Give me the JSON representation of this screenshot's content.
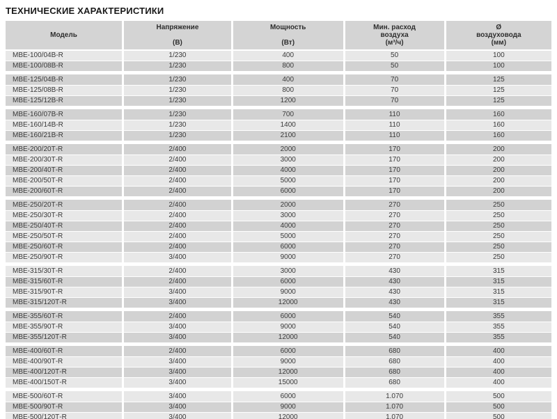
{
  "title": "ТЕХНИЧЕСКИЕ ХАРАКТЕРИСТИКИ",
  "theme": {
    "header_bg": "#d4d4d4",
    "row_dark": "#d2d2d2",
    "row_light": "#e8e8e8",
    "text": "#3a3a3a",
    "title_color": "#1a1a1a"
  },
  "table": {
    "columns": [
      {
        "id": "model",
        "lines": [
          "Модель"
        ]
      },
      {
        "id": "voltage",
        "lines": [
          "Напряжение",
          "(В)"
        ]
      },
      {
        "id": "power",
        "lines": [
          "Мощность",
          "(Вт)"
        ]
      },
      {
        "id": "airflow",
        "lines": [
          "Мин. расход",
          "воздуха",
          "(м³/ч)"
        ]
      },
      {
        "id": "diameter",
        "lines": [
          "Ø",
          "воздуховода",
          "(мм)"
        ]
      }
    ],
    "groups": [
      {
        "rows": [
          [
            "МВЕ-100/04В-R",
            "1/230",
            "400",
            "50",
            "100"
          ],
          [
            "МВЕ-100/08В-R",
            "1/230",
            "800",
            "50",
            "100"
          ]
        ]
      },
      {
        "rows": [
          [
            "МВЕ-125/04В-R",
            "1/230",
            "400",
            "70",
            "125"
          ],
          [
            "МВЕ-125/08В-R",
            "1/230",
            "800",
            "70",
            "125"
          ],
          [
            "МВЕ-125/12В-R",
            "1/230",
            "1200",
            "70",
            "125"
          ]
        ]
      },
      {
        "rows": [
          [
            "МВЕ-160/07В-R",
            "1/230",
            "700",
            "110",
            "160"
          ],
          [
            "МВЕ-160/14В-R",
            "1/230",
            "1400",
            "110",
            "160"
          ],
          [
            "МВЕ-160/21В-R",
            "1/230",
            "2100",
            "110",
            "160"
          ]
        ]
      },
      {
        "rows": [
          [
            "МВЕ-200/20Т-R",
            "2/400",
            "2000",
            "170",
            "200"
          ],
          [
            "МВЕ-200/30Т-R",
            "2/400",
            "3000",
            "170",
            "200"
          ],
          [
            "МВЕ-200/40Т-R",
            "2/400",
            "4000",
            "170",
            "200"
          ],
          [
            "МВЕ-200/50Т-R",
            "2/400",
            "5000",
            "170",
            "200"
          ],
          [
            "МВЕ-200/60Т-R",
            "2/400",
            "6000",
            "170",
            "200"
          ]
        ]
      },
      {
        "rows": [
          [
            "МВЕ-250/20Т-R",
            "2/400",
            "2000",
            "270",
            "250"
          ],
          [
            "МВЕ-250/30Т-R",
            "2/400",
            "3000",
            "270",
            "250"
          ],
          [
            "МВЕ-250/40Т-R",
            "2/400",
            "4000",
            "270",
            "250"
          ],
          [
            "МВЕ-250/50Т-R",
            "2/400",
            "5000",
            "270",
            "250"
          ],
          [
            "МВЕ-250/60Т-R",
            "2/400",
            "6000",
            "270",
            "250"
          ],
          [
            "МВЕ-250/90Т-R",
            "3/400",
            "9000",
            "270",
            "250"
          ]
        ]
      },
      {
        "rows": [
          [
            "МВЕ-315/30Т-R",
            "2/400",
            "3000",
            "430",
            "315"
          ],
          [
            "МВЕ-315/60Т-R",
            "2/400",
            "6000",
            "430",
            "315"
          ],
          [
            "МВЕ-315/90Т-R",
            "3/400",
            "9000",
            "430",
            "315"
          ],
          [
            "МВЕ-315/120Т-R",
            "3/400",
            "12000",
            "430",
            "315"
          ]
        ]
      },
      {
        "rows": [
          [
            "МВЕ-355/60Т-R",
            "2/400",
            "6000",
            "540",
            "355"
          ],
          [
            "МВЕ-355/90Т-R",
            "3/400",
            "9000",
            "540",
            "355"
          ],
          [
            "МВЕ-355/120Т-R",
            "3/400",
            "12000",
            "540",
            "355"
          ]
        ]
      },
      {
        "rows": [
          [
            "МВЕ-400/60Т-R",
            "2/400",
            "6000",
            "680",
            "400"
          ],
          [
            "МВЕ-400/90Т-R",
            "3/400",
            "9000",
            "680",
            "400"
          ],
          [
            "МВЕ-400/120Т-R",
            "3/400",
            "12000",
            "680",
            "400"
          ],
          [
            "МВЕ-400/150Т-R",
            "3/400",
            "15000",
            "680",
            "400"
          ]
        ]
      },
      {
        "rows": [
          [
            "МВЕ-500/60Т-R",
            "3/400",
            "6000",
            "1.070",
            "500"
          ],
          [
            "МВЕ-500/90Т-R",
            "3/400",
            "9000",
            "1.070",
            "500"
          ],
          [
            "МВЕ-500/120Т-R",
            "3/400",
            "12000",
            "1.070",
            "500"
          ]
        ]
      }
    ]
  }
}
